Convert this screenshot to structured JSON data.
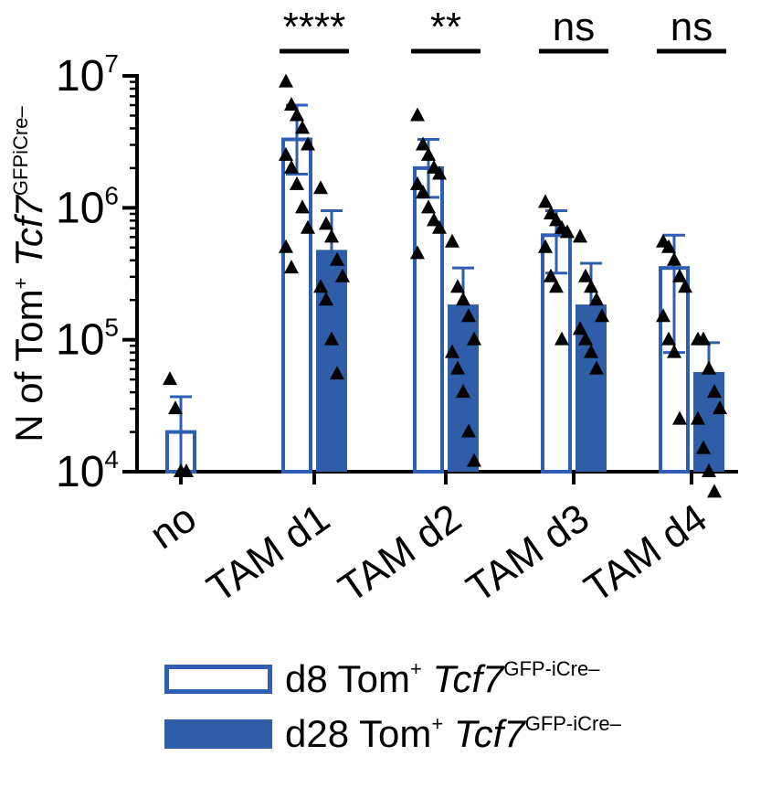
{
  "chart_data": {
    "type": "bar",
    "ylabel": {
      "pre": "N of Tom",
      "sup1": "+",
      "gene": "Tcf7",
      "sup2": "GFPiCre–"
    },
    "y_scale": "log",
    "ylim": [
      10000,
      10000000
    ],
    "y_ticks": [
      {
        "value": 10000,
        "base": "10",
        "exp": "4"
      },
      {
        "value": 100000,
        "base": "10",
        "exp": "5"
      },
      {
        "value": 1000000,
        "base": "10",
        "exp": "6"
      },
      {
        "value": 10000000,
        "base": "10",
        "exp": "7"
      }
    ],
    "categories": [
      "no",
      "TAM d1",
      "TAM d2",
      "TAM d3",
      "TAM d4"
    ],
    "series": [
      {
        "name": "d8 Tom+ Tcf7GFP-iCre–",
        "style": "open",
        "color": "#2e5fb4",
        "values": [
          20000,
          3300000,
          2000000,
          620000,
          350000
        ],
        "error_upper": [
          37000,
          6000000,
          3300000,
          950000,
          620000
        ],
        "error_lower": [
          10000,
          1800000,
          1200000,
          320000,
          80000
        ],
        "points": [
          [
            50000,
            30000,
            10000,
            10000
          ],
          [
            9000000,
            6000000,
            5000000,
            4000000,
            3000000,
            2500000,
            2000000,
            1500000,
            1000000,
            700000,
            500000,
            350000
          ],
          [
            5000000,
            3000000,
            2500000,
            2000000,
            1800000,
            1500000,
            1300000,
            1000000,
            800000,
            700000,
            450000
          ],
          [
            1100000,
            900000,
            800000,
            700000,
            650000,
            500000,
            300000,
            250000,
            100000
          ],
          [
            550000,
            500000,
            400000,
            300000,
            250000,
            150000,
            100000,
            80000,
            25000
          ]
        ]
      },
      {
        "name": "d28 Tom+ Tcf7GFP-iCre–",
        "style": "filled",
        "color": "#2f5da8",
        "values": [
          null,
          480000,
          185000,
          185000,
          57000
        ],
        "error_upper": [
          null,
          950000,
          350000,
          380000,
          95000
        ],
        "error_lower": [
          null,
          260000,
          95000,
          100000,
          20000
        ],
        "points": [
          [],
          [
            1400000,
            750000,
            600000,
            400000,
            300000,
            250000,
            200000,
            100000,
            55000
          ],
          [
            550000,
            250000,
            200000,
            150000,
            100000,
            80000,
            60000,
            40000,
            20000,
            12000
          ],
          [
            600000,
            300000,
            250000,
            200000,
            150000,
            120000,
            100000,
            80000,
            60000
          ],
          [
            100000,
            100000,
            60000,
            40000,
            30000,
            25000,
            15000,
            10000,
            7000
          ]
        ]
      }
    ],
    "significance": [
      {
        "category": "TAM d1",
        "label": "****"
      },
      {
        "category": "TAM d2",
        "label": "**"
      },
      {
        "category": "TAM d3",
        "label": "ns"
      },
      {
        "category": "TAM d4",
        "label": "ns"
      }
    ],
    "legend_position": "bottom"
  },
  "legend": {
    "open": {
      "pre": "d8 Tom",
      "sup1": "+",
      "gene": "Tcf7",
      "sup2": "GFP-iCre–"
    },
    "filled": {
      "pre": "d28 Tom",
      "sup1": "+",
      "gene": "Tcf7",
      "sup2": "GFP-iCre–"
    }
  }
}
